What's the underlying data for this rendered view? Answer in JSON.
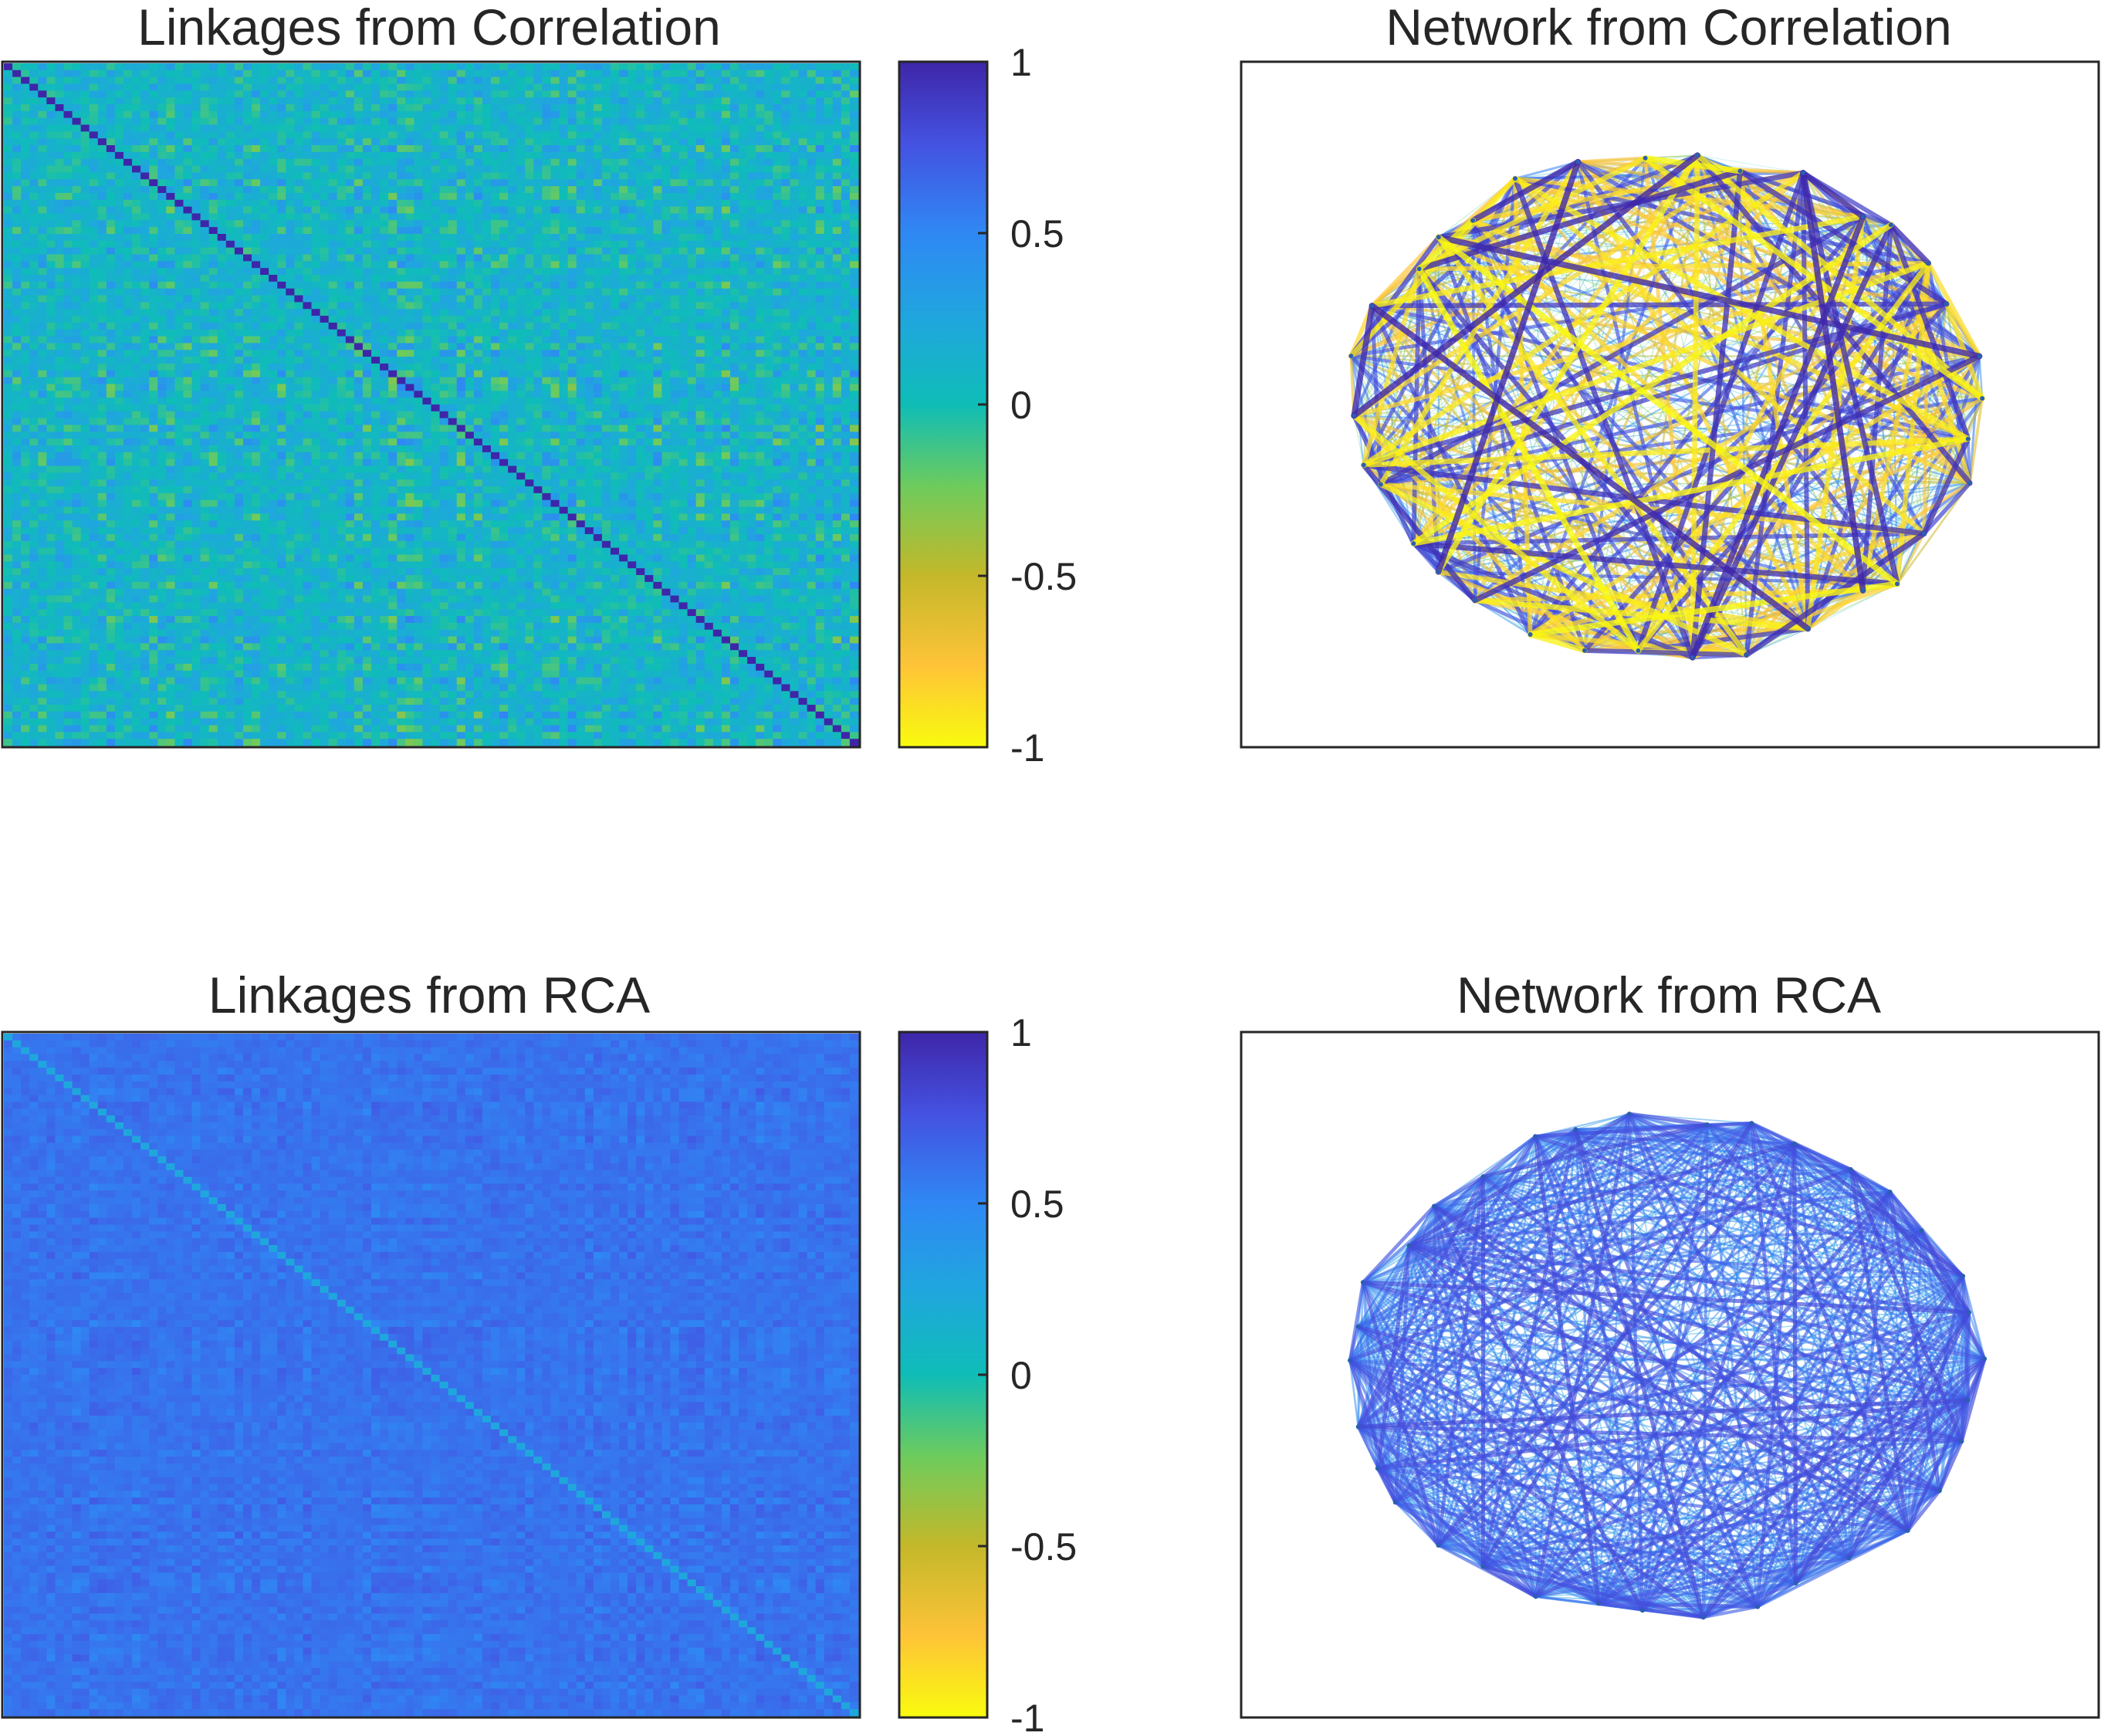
{
  "chart_data": [
    {
      "type": "heatmap",
      "title": "Linkages from Correlation",
      "matrix_size": 100,
      "color_range": [
        -1,
        1
      ],
      "colorbar": {
        "ticks": [
          1,
          0.5,
          0,
          -0.5,
          -1
        ],
        "tick_labels": [
          "1",
          "0.5",
          "0",
          "-0.5",
          "-1"
        ]
      },
      "value_mean": 0.1,
      "value_spread": 0.45,
      "diagonal_value": 1,
      "grid": false
    },
    {
      "type": "network",
      "title": "Network from Correlation",
      "nodes": 34,
      "edge_color_range": [
        -1,
        1
      ],
      "dominant_edge_sign": "mixed"
    },
    {
      "type": "heatmap",
      "title": "Linkages from RCA",
      "matrix_size": 100,
      "color_range": [
        -1,
        1
      ],
      "colorbar": {
        "ticks": [
          1,
          0.5,
          0,
          -0.5,
          -1
        ],
        "tick_labels": [
          "1",
          "0.5",
          "0",
          "-0.5",
          "-1"
        ]
      },
      "value_mean": 0.6,
      "value_spread": 0.12,
      "diagonal_value": 0.25,
      "grid": false
    },
    {
      "type": "network",
      "title": "Network from RCA",
      "nodes": 34,
      "edge_color_range": [
        -1,
        1
      ],
      "dominant_edge_sign": "positive"
    }
  ],
  "colors": {
    "colormap_low": "#f9fb0e",
    "colormap_mid": "#0fbdb7",
    "colormap_high": "#3e26a8",
    "axes": "#262626"
  }
}
